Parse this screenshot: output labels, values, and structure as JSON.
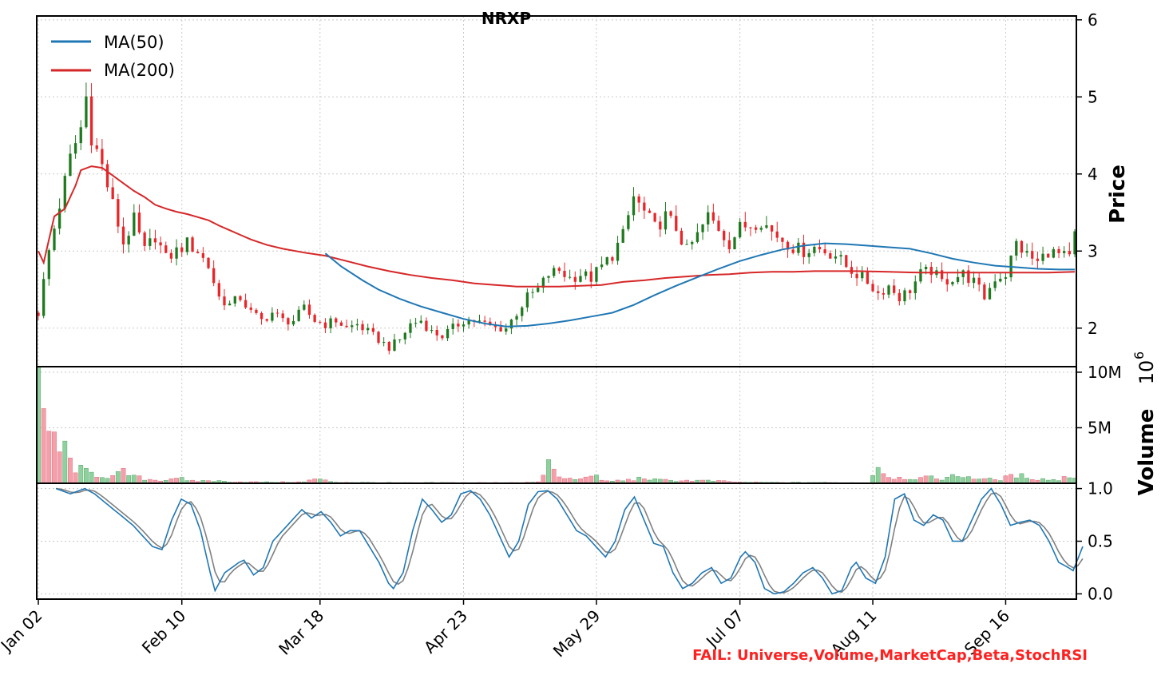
{
  "chart_data": {
    "type": "candlestick",
    "title": "NRXP",
    "price_axis": {
      "label": "Price",
      "ylim": [
        1.5,
        6.05
      ],
      "ticks": [
        2,
        3,
        4,
        5,
        6
      ]
    },
    "volume_axis": {
      "label": "Volume",
      "multiplier": "10",
      "multiplier_exp": "6",
      "ylim": [
        0,
        10500000
      ],
      "ticks": [
        5000000,
        10000000
      ],
      "tick_labels": [
        "5M",
        "10M"
      ]
    },
    "stoch_axis": {
      "ylim": [
        -0.05,
        1.05
      ],
      "ticks": [
        0.0,
        0.5,
        1.0
      ],
      "tick_labels": [
        "0.0",
        "0.5",
        "1.0"
      ]
    },
    "x_ticks": [
      {
        "label": "Jan 02",
        "index": 0
      },
      {
        "label": "Feb 10",
        "index": 27
      },
      {
        "label": "Mar 18",
        "index": 53
      },
      {
        "label": "Apr 23",
        "index": 80
      },
      {
        "label": "May 29",
        "index": 105
      },
      {
        "label": "Jul 07",
        "index": 132
      },
      {
        "label": "Aug 11",
        "index": 157
      },
      {
        "label": "Sep 16",
        "index": 182
      }
    ],
    "n_bars": 196,
    "legend": [
      {
        "name": "MA(50)",
        "color": "#1f77b4"
      },
      {
        "name": "MA(200)",
        "color": "#d62728"
      }
    ],
    "close_keypoints": [
      [
        0,
        2.2
      ],
      [
        2,
        3.0
      ],
      [
        4,
        3.6
      ],
      [
        6,
        4.2
      ],
      [
        8,
        4.6
      ],
      [
        9,
        5.0
      ],
      [
        10,
        4.5
      ],
      [
        12,
        4.1
      ],
      [
        14,
        3.6
      ],
      [
        16,
        3.1
      ],
      [
        18,
        3.4
      ],
      [
        20,
        3.0
      ],
      [
        22,
        3.2
      ],
      [
        24,
        2.9
      ],
      [
        26,
        3.0
      ],
      [
        28,
        3.1
      ],
      [
        30,
        3.0
      ],
      [
        32,
        2.8
      ],
      [
        34,
        2.4
      ],
      [
        36,
        2.3
      ],
      [
        38,
        2.4
      ],
      [
        40,
        2.2
      ],
      [
        42,
        2.1
      ],
      [
        44,
        2.2
      ],
      [
        46,
        2.1
      ],
      [
        48,
        2.1
      ],
      [
        50,
        2.25
      ],
      [
        52,
        2.1
      ],
      [
        54,
        2.05
      ],
      [
        56,
        2.1
      ],
      [
        58,
        2.0
      ],
      [
        60,
        2.05
      ],
      [
        62,
        1.95
      ],
      [
        64,
        1.85
      ],
      [
        66,
        1.75
      ],
      [
        68,
        1.85
      ],
      [
        70,
        2.05
      ],
      [
        72,
        2.1
      ],
      [
        74,
        1.95
      ],
      [
        76,
        1.9
      ],
      [
        78,
        2.0
      ],
      [
        80,
        2.1
      ],
      [
        82,
        2.1
      ],
      [
        84,
        2.05
      ],
      [
        86,
        2.0
      ],
      [
        88,
        2.0
      ],
      [
        90,
        2.2
      ],
      [
        92,
        2.4
      ],
      [
        94,
        2.5
      ],
      [
        96,
        2.7
      ],
      [
        98,
        2.75
      ],
      [
        100,
        2.65
      ],
      [
        102,
        2.7
      ],
      [
        104,
        2.65
      ],
      [
        106,
        2.8
      ],
      [
        108,
        2.95
      ],
      [
        110,
        3.2
      ],
      [
        112,
        3.7
      ],
      [
        114,
        3.5
      ],
      [
        116,
        3.3
      ],
      [
        118,
        3.45
      ],
      [
        120,
        3.3
      ],
      [
        122,
        3.0
      ],
      [
        124,
        3.2
      ],
      [
        126,
        3.45
      ],
      [
        128,
        3.3
      ],
      [
        130,
        3.1
      ],
      [
        132,
        3.3
      ],
      [
        134,
        3.35
      ],
      [
        136,
        3.4
      ],
      [
        138,
        3.25
      ],
      [
        140,
        3.15
      ],
      [
        142,
        3.05
      ],
      [
        144,
        3.0
      ],
      [
        146,
        3.05
      ],
      [
        148,
        3.0
      ],
      [
        150,
        2.95
      ],
      [
        152,
        2.8
      ],
      [
        154,
        2.7
      ],
      [
        156,
        2.6
      ],
      [
        158,
        2.45
      ],
      [
        160,
        2.55
      ],
      [
        162,
        2.4
      ],
      [
        164,
        2.5
      ],
      [
        166,
        2.7
      ],
      [
        168,
        2.75
      ],
      [
        170,
        2.6
      ],
      [
        172,
        2.65
      ],
      [
        174,
        2.7
      ],
      [
        176,
        2.6
      ],
      [
        178,
        2.4
      ],
      [
        180,
        2.65
      ],
      [
        182,
        2.7
      ],
      [
        184,
        3.1
      ],
      [
        186,
        2.95
      ],
      [
        188,
        2.85
      ],
      [
        190,
        3.0
      ],
      [
        192,
        2.95
      ],
      [
        194,
        2.9
      ],
      [
        195,
        3.2
      ]
    ],
    "ma50_keypoints": [
      [
        54,
        2.97
      ],
      [
        57,
        2.8
      ],
      [
        61,
        2.62
      ],
      [
        64,
        2.5
      ],
      [
        68,
        2.38
      ],
      [
        72,
        2.28
      ],
      [
        76,
        2.2
      ],
      [
        80,
        2.12
      ],
      [
        84,
        2.06
      ],
      [
        88,
        2.02
      ],
      [
        92,
        2.03
      ],
      [
        96,
        2.06
      ],
      [
        100,
        2.1
      ],
      [
        104,
        2.15
      ],
      [
        108,
        2.2
      ],
      [
        112,
        2.3
      ],
      [
        116,
        2.43
      ],
      [
        120,
        2.55
      ],
      [
        124,
        2.66
      ],
      [
        128,
        2.77
      ],
      [
        132,
        2.87
      ],
      [
        136,
        2.95
      ],
      [
        140,
        3.02
      ],
      [
        144,
        3.07
      ],
      [
        148,
        3.1
      ],
      [
        152,
        3.09
      ],
      [
        156,
        3.07
      ],
      [
        160,
        3.05
      ],
      [
        164,
        3.03
      ],
      [
        168,
        2.97
      ],
      [
        172,
        2.9
      ],
      [
        176,
        2.85
      ],
      [
        180,
        2.81
      ],
      [
        184,
        2.79
      ],
      [
        188,
        2.77
      ],
      [
        192,
        2.76
      ],
      [
        195,
        2.76
      ]
    ],
    "ma200_keypoints": [
      [
        0,
        3.0
      ],
      [
        1,
        2.85
      ],
      [
        3,
        3.45
      ],
      [
        5,
        3.55
      ],
      [
        7,
        3.85
      ],
      [
        8,
        4.05
      ],
      [
        10,
        4.1
      ],
      [
        12,
        4.08
      ],
      [
        14,
        3.98
      ],
      [
        16,
        3.88
      ],
      [
        18,
        3.78
      ],
      [
        20,
        3.7
      ],
      [
        22,
        3.6
      ],
      [
        24,
        3.55
      ],
      [
        26,
        3.51
      ],
      [
        28,
        3.48
      ],
      [
        30,
        3.44
      ],
      [
        32,
        3.4
      ],
      [
        34,
        3.33
      ],
      [
        36,
        3.27
      ],
      [
        38,
        3.21
      ],
      [
        40,
        3.15
      ],
      [
        43,
        3.08
      ],
      [
        46,
        3.03
      ],
      [
        50,
        2.98
      ],
      [
        54,
        2.94
      ],
      [
        58,
        2.87
      ],
      [
        62,
        2.8
      ],
      [
        66,
        2.74
      ],
      [
        70,
        2.69
      ],
      [
        74,
        2.65
      ],
      [
        78,
        2.62
      ],
      [
        82,
        2.58
      ],
      [
        86,
        2.56
      ],
      [
        90,
        2.54
      ],
      [
        94,
        2.54
      ],
      [
        98,
        2.54
      ],
      [
        102,
        2.55
      ],
      [
        106,
        2.56
      ],
      [
        110,
        2.6
      ],
      [
        114,
        2.62
      ],
      [
        118,
        2.65
      ],
      [
        122,
        2.67
      ],
      [
        126,
        2.69
      ],
      [
        130,
        2.7
      ],
      [
        134,
        2.72
      ],
      [
        138,
        2.73
      ],
      [
        142,
        2.73
      ],
      [
        146,
        2.74
      ],
      [
        150,
        2.74
      ],
      [
        154,
        2.74
      ],
      [
        160,
        2.73
      ],
      [
        166,
        2.72
      ],
      [
        172,
        2.72
      ],
      [
        178,
        2.72
      ],
      [
        184,
        2.72
      ],
      [
        190,
        2.72
      ],
      [
        195,
        2.73
      ]
    ],
    "volume_keypoints": [
      [
        0,
        10000000
      ],
      [
        1,
        5000000
      ],
      [
        2,
        4000000
      ],
      [
        3,
        4500000
      ],
      [
        4,
        3000000
      ],
      [
        5,
        3000000
      ],
      [
        6,
        2000000
      ],
      [
        7,
        1400000
      ],
      [
        8,
        1200000
      ],
      [
        9,
        1000000
      ],
      [
        10,
        900000
      ],
      [
        11,
        800000
      ],
      [
        12,
        700000
      ],
      [
        14,
        600000
      ],
      [
        16,
        1000000
      ],
      [
        18,
        600000
      ],
      [
        20,
        400000
      ],
      [
        22,
        300000
      ],
      [
        24,
        300000
      ],
      [
        26,
        600000
      ],
      [
        28,
        200000
      ],
      [
        30,
        200000
      ],
      [
        32,
        250000
      ],
      [
        34,
        200000
      ],
      [
        36,
        150000
      ],
      [
        40,
        120000
      ],
      [
        44,
        100000
      ],
      [
        50,
        120000
      ],
      [
        52,
        400000
      ],
      [
        56,
        100000
      ],
      [
        60,
        80000
      ],
      [
        66,
        60000
      ],
      [
        70,
        50000
      ],
      [
        74,
        60000
      ],
      [
        80,
        60000
      ],
      [
        86,
        60000
      ],
      [
        90,
        80000
      ],
      [
        94,
        100000
      ],
      [
        96,
        1800000
      ],
      [
        98,
        500000
      ],
      [
        100,
        400000
      ],
      [
        102,
        350000
      ],
      [
        104,
        1000000
      ],
      [
        106,
        200000
      ],
      [
        110,
        250000
      ],
      [
        112,
        350000
      ],
      [
        114,
        500000
      ],
      [
        116,
        300000
      ],
      [
        120,
        250000
      ],
      [
        124,
        250000
      ],
      [
        128,
        200000
      ],
      [
        132,
        100000
      ],
      [
        136,
        80000
      ],
      [
        140,
        70000
      ],
      [
        146,
        80000
      ],
      [
        150,
        60000
      ],
      [
        154,
        60000
      ],
      [
        156,
        60000
      ],
      [
        158,
        1600000
      ],
      [
        160,
        600000
      ],
      [
        162,
        500000
      ],
      [
        164,
        500000
      ],
      [
        166,
        450000
      ],
      [
        168,
        500000
      ],
      [
        170,
        450000
      ],
      [
        172,
        600000
      ],
      [
        174,
        700000
      ],
      [
        176,
        500000
      ],
      [
        178,
        400000
      ],
      [
        180,
        300000
      ],
      [
        182,
        500000
      ],
      [
        184,
        700000
      ],
      [
        186,
        600000
      ],
      [
        188,
        400000
      ],
      [
        190,
        350000
      ],
      [
        192,
        300000
      ],
      [
        194,
        700000
      ],
      [
        195,
        500000
      ]
    ],
    "stoch_k_keypoints": [
      [
        2,
        1.0
      ],
      [
        5,
        0.95
      ],
      [
        8,
        1.0
      ],
      [
        10,
        0.95
      ],
      [
        14,
        0.8
      ],
      [
        18,
        0.65
      ],
      [
        22,
        0.45
      ],
      [
        24,
        0.42
      ],
      [
        26,
        0.7
      ],
      [
        28,
        0.9
      ],
      [
        30,
        0.85
      ],
      [
        32,
        0.6
      ],
      [
        34,
        0.2
      ],
      [
        35,
        0.03
      ],
      [
        37,
        0.2
      ],
      [
        40,
        0.3
      ],
      [
        41,
        0.32
      ],
      [
        43,
        0.18
      ],
      [
        45,
        0.25
      ],
      [
        47,
        0.5
      ],
      [
        49,
        0.6
      ],
      [
        51,
        0.7
      ],
      [
        53,
        0.8
      ],
      [
        55,
        0.72
      ],
      [
        57,
        0.78
      ],
      [
        59,
        0.68
      ],
      [
        61,
        0.55
      ],
      [
        63,
        0.6
      ],
      [
        65,
        0.6
      ],
      [
        67,
        0.45
      ],
      [
        69,
        0.3
      ],
      [
        71,
        0.1
      ],
      [
        72,
        0.05
      ],
      [
        74,
        0.2
      ],
      [
        76,
        0.6
      ],
      [
        78,
        0.9
      ],
      [
        80,
        0.8
      ],
      [
        82,
        0.68
      ],
      [
        84,
        0.75
      ],
      [
        86,
        0.95
      ],
      [
        88,
        0.98
      ],
      [
        90,
        0.9
      ],
      [
        92,
        0.75
      ],
      [
        94,
        0.55
      ],
      [
        96,
        0.35
      ],
      [
        98,
        0.5
      ],
      [
        100,
        0.85
      ],
      [
        102,
        0.97
      ],
      [
        104,
        0.98
      ],
      [
        106,
        0.9
      ],
      [
        108,
        0.75
      ],
      [
        110,
        0.6
      ],
      [
        112,
        0.55
      ],
      [
        114,
        0.45
      ],
      [
        116,
        0.35
      ],
      [
        118,
        0.5
      ],
      [
        120,
        0.8
      ],
      [
        122,
        0.92
      ],
      [
        124,
        0.7
      ],
      [
        126,
        0.48
      ],
      [
        128,
        0.45
      ],
      [
        130,
        0.2
      ],
      [
        132,
        0.05
      ],
      [
        134,
        0.1
      ],
      [
        136,
        0.2
      ],
      [
        138,
        0.25
      ],
      [
        140,
        0.1
      ],
      [
        142,
        0.15
      ],
      [
        144,
        0.35
      ],
      [
        145,
        0.4
      ],
      [
        147,
        0.3
      ],
      [
        149,
        0.05
      ],
      [
        151,
        0.0
      ],
      [
        153,
        0.02
      ],
      [
        155,
        0.1
      ],
      [
        157,
        0.2
      ],
      [
        159,
        0.25
      ],
      [
        161,
        0.15
      ],
      [
        163,
        0.0
      ],
      [
        165,
        0.03
      ],
      [
        167,
        0.25
      ],
      [
        168,
        0.3
      ],
      [
        170,
        0.15
      ],
      [
        172,
        0.1
      ],
      [
        174,
        0.35
      ],
      [
        176,
        0.9
      ],
      [
        178,
        0.95
      ],
      [
        180,
        0.7
      ],
      [
        182,
        0.65
      ],
      [
        184,
        0.75
      ],
      [
        186,
        0.7
      ],
      [
        188,
        0.5
      ],
      [
        190,
        0.5
      ],
      [
        192,
        0.7
      ],
      [
        194,
        0.9
      ],
      [
        196,
        1.0
      ],
      [
        198,
        0.85
      ],
      [
        200,
        0.65
      ],
      [
        202,
        0.68
      ],
      [
        204,
        0.7
      ],
      [
        206,
        0.65
      ],
      [
        208,
        0.5
      ],
      [
        210,
        0.3
      ],
      [
        212,
        0.25
      ],
      [
        213,
        0.22
      ],
      [
        215,
        0.45
      ]
    ],
    "fail_text": "FAIL: Universe,Volume,MarketCap,Beta,StochRSI"
  }
}
